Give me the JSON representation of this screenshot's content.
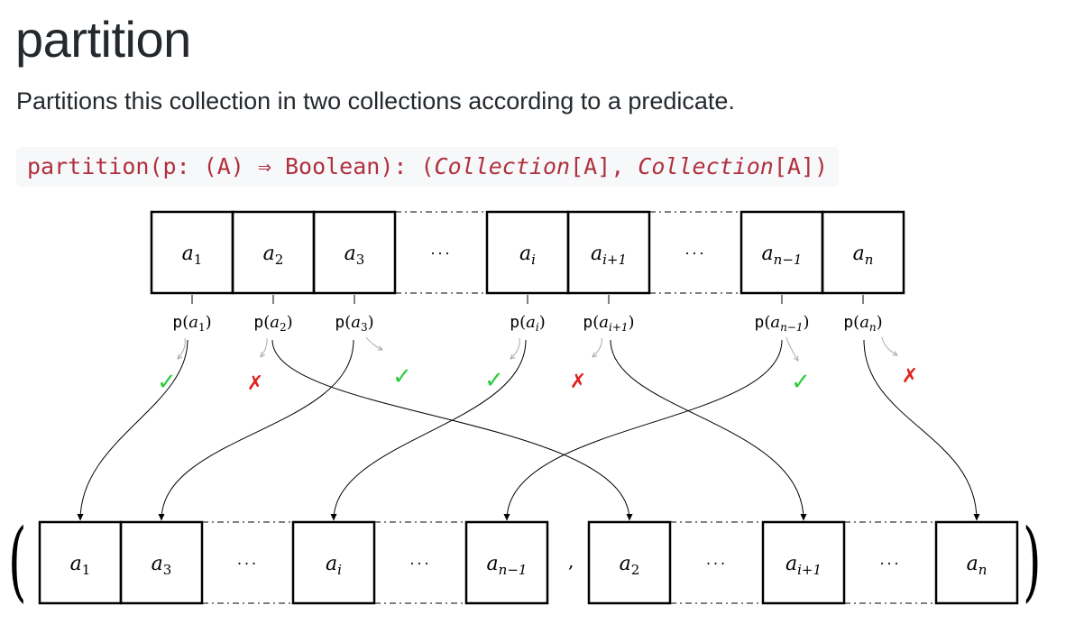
{
  "doc": {
    "title": "partition",
    "description": "Partitions this collection in two collections according to a predicate.",
    "signature": {
      "prefix": "partition(p: (A) ⇒ Boolean): (",
      "type1": "Collection",
      "mid": "[A], ",
      "type2": "Collection",
      "suffix": "[A])"
    }
  },
  "diagram": {
    "input": [
      {
        "base": "a",
        "sub": "1"
      },
      {
        "base": "a",
        "sub": "2"
      },
      {
        "base": "a",
        "sub": "3"
      },
      {
        "ellipsis": "···"
      },
      {
        "base": "a",
        "sub": "i"
      },
      {
        "base": "a",
        "sub": "i+1"
      },
      {
        "ellipsis": "···"
      },
      {
        "base": "a",
        "sub": "n−1"
      },
      {
        "base": "a",
        "sub": "n"
      }
    ],
    "predicate_fn": "p",
    "predicate_args": [
      {
        "base": "a",
        "sub": "1",
        "result": "true"
      },
      {
        "base": "a",
        "sub": "2",
        "result": "false"
      },
      {
        "base": "a",
        "sub": "3",
        "result": "true"
      },
      {
        "base": "a",
        "sub": "i",
        "result": "true"
      },
      {
        "base": "a",
        "sub": "i+1",
        "result": "false"
      },
      {
        "base": "a",
        "sub": "n−1",
        "result": "true"
      },
      {
        "base": "a",
        "sub": "n",
        "result": "false"
      }
    ],
    "marks": {
      "true": "✓",
      "false": "✗"
    },
    "output_left": [
      {
        "base": "a",
        "sub": "1"
      },
      {
        "base": "a",
        "sub": "3"
      },
      {
        "ellipsis": "···"
      },
      {
        "base": "a",
        "sub": "i"
      },
      {
        "ellipsis": "···"
      },
      {
        "base": "a",
        "sub": "n−1"
      }
    ],
    "output_right": [
      {
        "base": "a",
        "sub": "2"
      },
      {
        "ellipsis": "···"
      },
      {
        "base": "a",
        "sub": "i+1"
      },
      {
        "ellipsis": "···"
      },
      {
        "base": "a",
        "sub": "n"
      }
    ],
    "tuple": {
      "open": "(",
      "separator": ",",
      "close": ")"
    },
    "colors": {
      "check": "#2ecc40",
      "cross": "#e0201c",
      "stroke": "#000000",
      "hint": "#aaaaaa"
    }
  }
}
